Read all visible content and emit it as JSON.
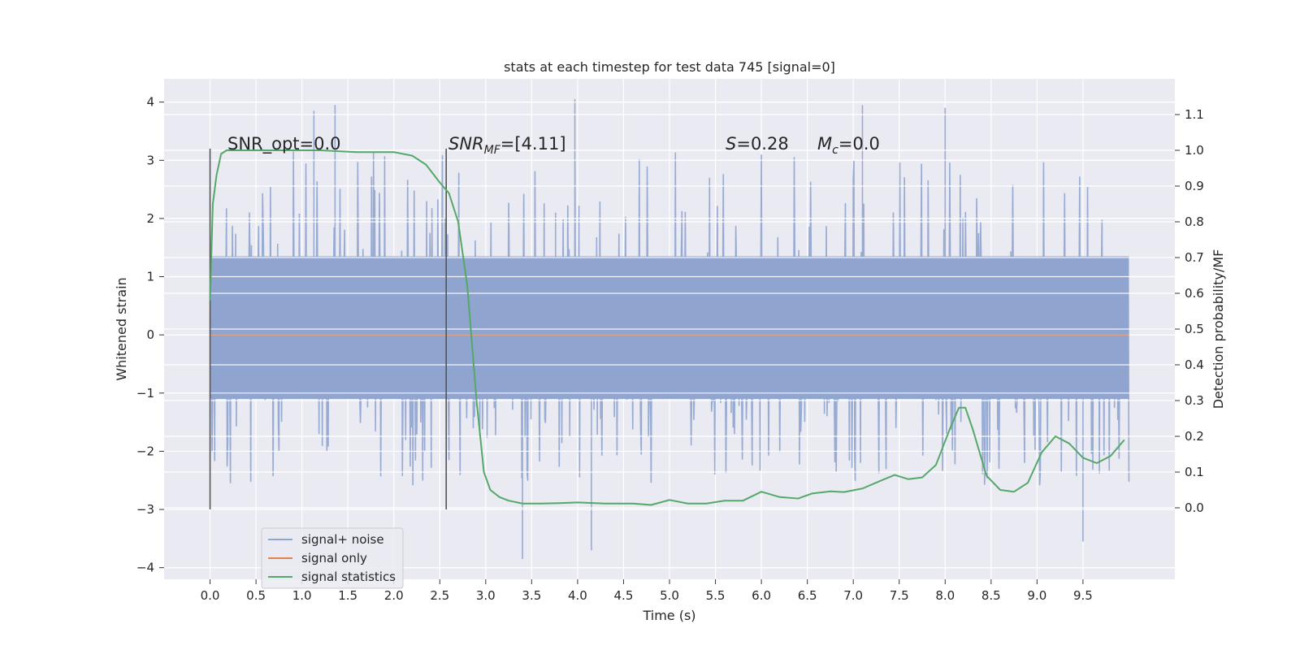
{
  "chart_data": {
    "type": "line",
    "title": "stats at each timestep for test data 745 [signal=0]",
    "xlabel": "Time (s)",
    "ylabel_left": "Whitened strain",
    "ylabel_right": "Detection probability/MF",
    "xlim": [
      -0.5,
      10.5
    ],
    "ylim_left": [
      -4.2,
      4.4
    ],
    "ylim_right": [
      -0.2,
      1.2
    ],
    "x_ticks": [
      "0.0",
      "0.5",
      "1.0",
      "1.5",
      "2.0",
      "2.5",
      "3.0",
      "3.5",
      "4.0",
      "4.5",
      "5.0",
      "5.5",
      "6.0",
      "6.5",
      "7.0",
      "7.5",
      "8.0",
      "8.5",
      "9.0",
      "9.5"
    ],
    "y_left_ticks": [
      "4",
      "3",
      "2",
      "1",
      "0",
      "−1",
      "−2",
      "−3",
      "−4"
    ],
    "y_right_ticks": [
      "1.1",
      "1.0",
      "0.9",
      "0.8",
      "0.7",
      "0.6",
      "0.5",
      "0.4",
      "0.3",
      "0.2",
      "0.1",
      "0.0"
    ],
    "grid": true,
    "legend_position": "lower-left",
    "annotations": {
      "snr_opt": "SNR_opt=0.0",
      "snr_mf_main": "SNR",
      "snr_mf_sub": "MF",
      "snr_mf_value": "=[4.11]",
      "s_main": "S",
      "s_value": "=0.28",
      "mc_main": "M",
      "mc_sub": "c",
      "mc_value": "=0.0"
    },
    "vertical_lines": [
      {
        "x": 0.0,
        "y_range": [
          -3.0,
          3.2
        ]
      },
      {
        "x": 2.57,
        "y_range": [
          -3.0,
          3.2
        ]
      }
    ],
    "series": [
      {
        "name": "signal+ noise",
        "color": "#8fa4cf",
        "axis": "left",
        "x_range": [
          0.0,
          10.0
        ],
        "core_range": [
          -1.1,
          1.35
        ],
        "peak_range": [
          -3.85,
          4.05
        ],
        "description_points": [
          {
            "x": 1.13,
            "y": 3.85
          },
          {
            "x": 1.36,
            "y": 3.95
          },
          {
            "x": 3.76,
            "y": 2.1
          },
          {
            "x": 3.97,
            "y": 4.05
          },
          {
            "x": 3.4,
            "y": -3.85
          },
          {
            "x": 4.15,
            "y": -3.7
          },
          {
            "x": 9.5,
            "y": -3.55
          },
          {
            "x": 7.1,
            "y": 3.95
          },
          {
            "x": 8.0,
            "y": 3.9
          }
        ]
      },
      {
        "name": "signal only",
        "color": "#dd8452",
        "axis": "left",
        "x": [
          0.0,
          10.0
        ],
        "y": [
          0.0,
          0.0
        ]
      },
      {
        "name": "signal statistics",
        "color": "#55a868",
        "axis": "right",
        "x": [
          0.0,
          0.03,
          0.07,
          0.12,
          0.18,
          0.3,
          0.5,
          0.8,
          1.2,
          1.6,
          2.0,
          2.2,
          2.35,
          2.5,
          2.6,
          2.7,
          2.8,
          2.9,
          2.98,
          3.05,
          3.15,
          3.25,
          3.4,
          3.6,
          3.8,
          4.0,
          4.3,
          4.6,
          4.8,
          5.0,
          5.2,
          5.4,
          5.6,
          5.8,
          6.0,
          6.2,
          6.4,
          6.55,
          6.75,
          6.9,
          7.1,
          7.3,
          7.45,
          7.6,
          7.75,
          7.9,
          8.05,
          8.15,
          8.22,
          8.3,
          8.45,
          8.6,
          8.75,
          8.9,
          9.05,
          9.2,
          9.35,
          9.5,
          9.65,
          9.8,
          9.95
        ],
        "y": [
          0.58,
          0.85,
          0.93,
          0.99,
          1.0,
          1.0,
          1.0,
          1.0,
          1.0,
          0.995,
          0.995,
          0.985,
          0.96,
          0.91,
          0.88,
          0.8,
          0.62,
          0.3,
          0.1,
          0.05,
          0.03,
          0.02,
          0.012,
          0.012,
          0.013,
          0.015,
          0.012,
          0.012,
          0.008,
          0.022,
          0.012,
          0.012,
          0.02,
          0.02,
          0.045,
          0.03,
          0.026,
          0.04,
          0.046,
          0.044,
          0.054,
          0.076,
          0.092,
          0.08,
          0.085,
          0.12,
          0.22,
          0.28,
          0.28,
          0.22,
          0.09,
          0.05,
          0.045,
          0.07,
          0.155,
          0.2,
          0.18,
          0.14,
          0.125,
          0.145,
          0.19
        ]
      }
    ]
  }
}
